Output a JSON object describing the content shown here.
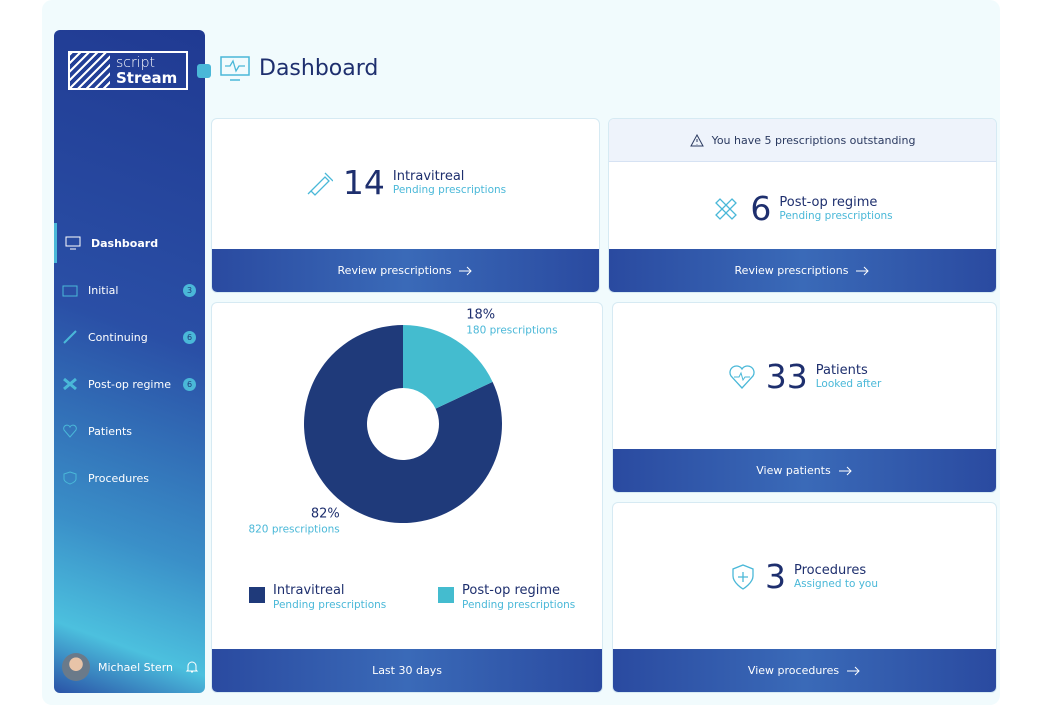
{
  "brand": {
    "line1": "script",
    "line2": "Stream"
  },
  "header": {
    "title": "Dashboard"
  },
  "nav": [
    {
      "label": "Dashboard"
    },
    {
      "label": "Initial",
      "badge": "3"
    },
    {
      "label": "Continuing",
      "badge": "6"
    },
    {
      "label": "Post-op regime",
      "badge": "6"
    },
    {
      "label": "Patients"
    },
    {
      "label": "Procedures"
    }
  ],
  "user": {
    "name": "Michael Stern"
  },
  "alert": "You have 5 prescriptions outstanding",
  "cards": [
    {
      "count": "14",
      "title": "Intravitreal",
      "subtitle": "Pending prescriptions",
      "action": "Review prescriptions"
    },
    {
      "count": "6",
      "title": "Post-op regime",
      "subtitle": "Pending prescriptions",
      "action": "Review prescriptions"
    },
    {
      "count": "33",
      "title": "Patients",
      "subtitle": "Looked after",
      "action": "View patients"
    },
    {
      "count": "3",
      "title": "Procedures",
      "subtitle": "Assigned to you",
      "action": "View procedures"
    }
  ],
  "chart_data": {
    "type": "pie",
    "categories": [
      "Intravitreal",
      "Post-op regime"
    ],
    "legend_subtitles": [
      "Pending prescriptions",
      "Pending prescriptions"
    ],
    "values": [
      82,
      18
    ],
    "value_labels": [
      "82%",
      "18%"
    ],
    "detail_labels": [
      "820 prescriptions",
      "180 prescriptions"
    ],
    "colors": [
      "#1f3a7a",
      "#44bccf"
    ],
    "footer": "Last 30 days"
  }
}
